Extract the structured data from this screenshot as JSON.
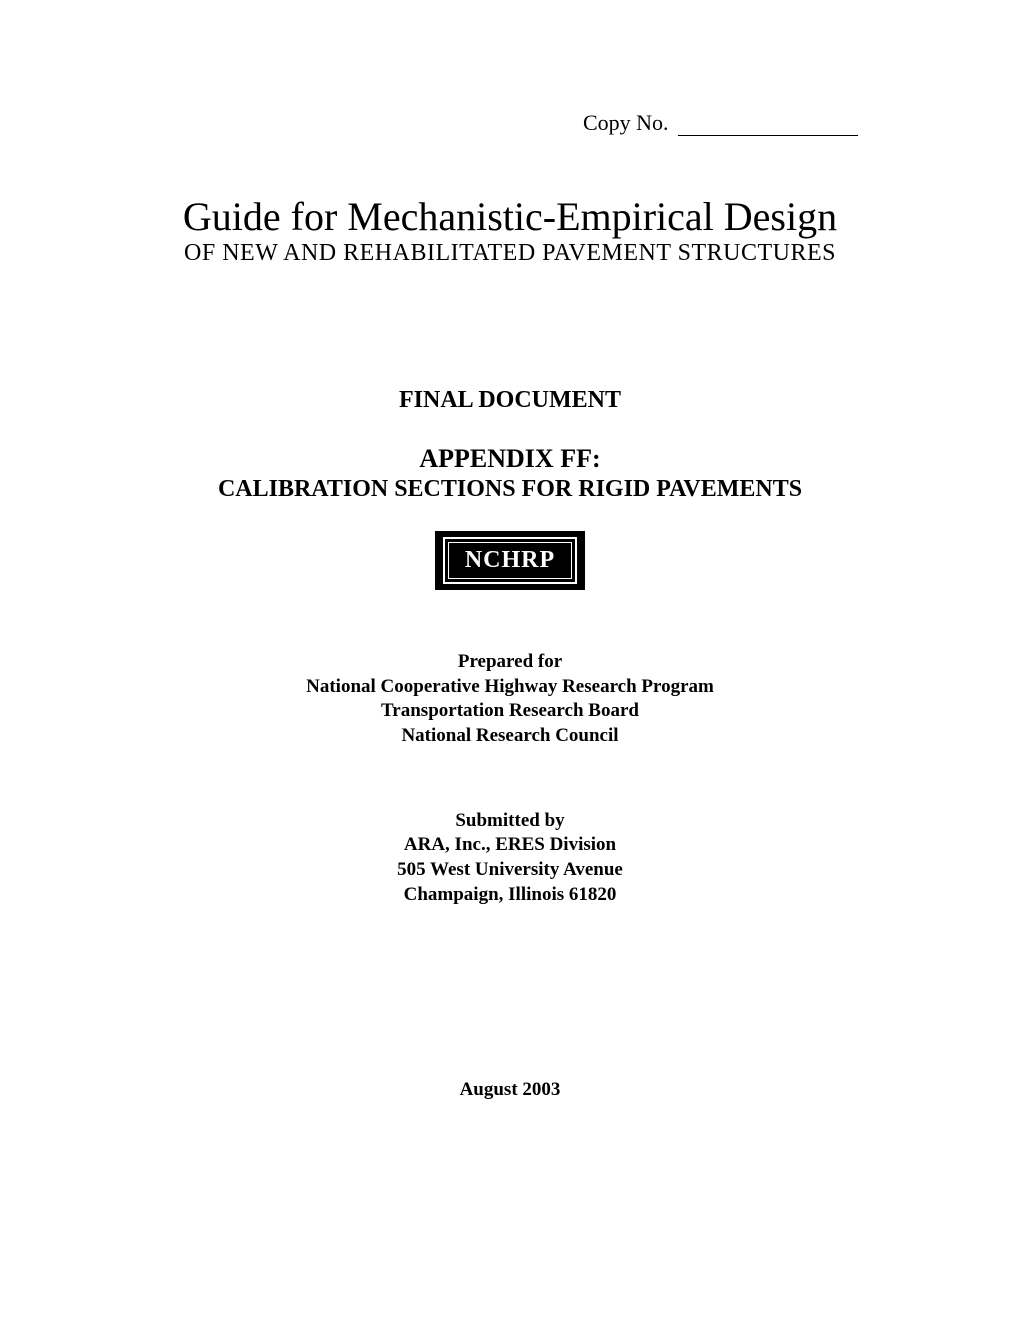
{
  "copy_label": "Copy No.",
  "title": "Guide for Mechanistic-Empirical Design",
  "subtitle": "OF NEW AND REHABILITATED PAVEMENT STRUCTURES",
  "final_document": "FINAL DOCUMENT",
  "appendix_label": "APPENDIX FF:",
  "appendix_title": "CALIBRATION SECTIONS FOR RIGID PAVEMENTS",
  "badge": "NCHRP",
  "prepared": {
    "heading": "Prepared for",
    "line1": "National Cooperative Highway Research Program",
    "line2": "Transportation Research Board",
    "line3": "National Research Council"
  },
  "submitted": {
    "heading": "Submitted by",
    "line1": "ARA, Inc., ERES Division",
    "line2": "505 West University Avenue",
    "line3": "Champaign, Illinois 61820"
  },
  "date": "August 2003",
  "colors": {
    "text": "#000000",
    "background": "#ffffff",
    "badge_bg": "#000000",
    "badge_text": "#ffffff"
  },
  "typography": {
    "title_fontsize": 40,
    "subtitle_fontsize": 24,
    "section_label_fontsize": 24,
    "appendix_label_fontsize": 26,
    "body_fontsize": 19,
    "font_family": "Times New Roman"
  }
}
